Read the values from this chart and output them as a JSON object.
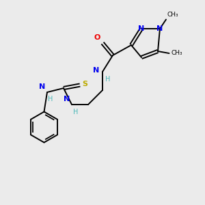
{
  "background_color": "#ebebeb",
  "bond_color": "#000000",
  "N_color": "#0000ee",
  "O_color": "#ee0000",
  "S_color": "#bbaa00",
  "H_color": "#4ab8b8",
  "figsize": [
    3.0,
    3.0
  ],
  "dpi": 100,
  "xlim": [
    0,
    10
  ],
  "ylim": [
    0,
    10
  ]
}
